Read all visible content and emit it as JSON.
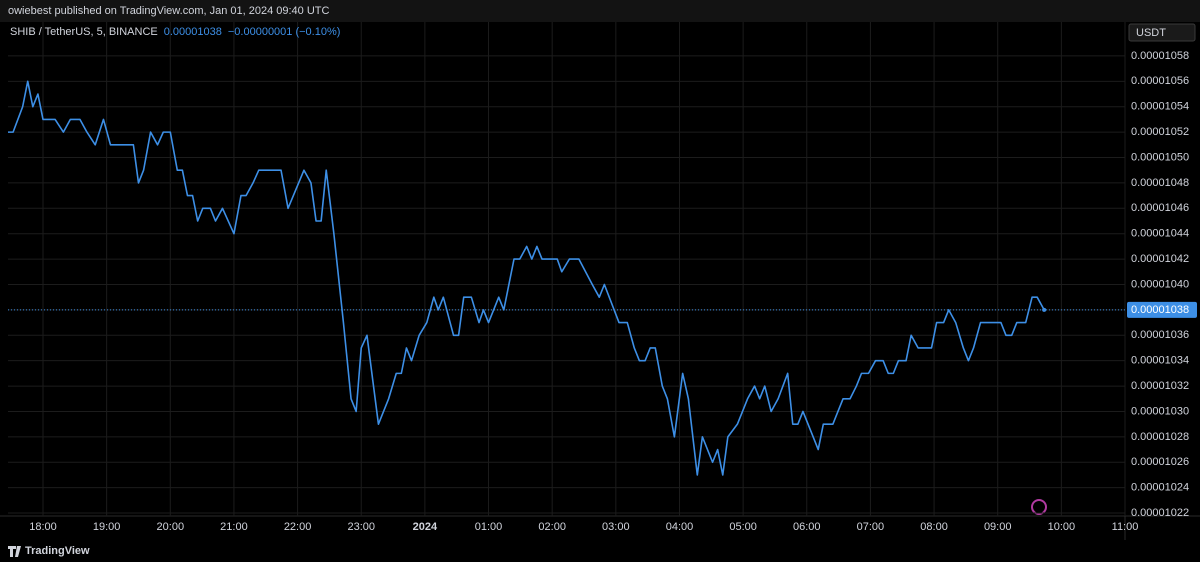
{
  "chart_data": {
    "type": "line",
    "header": "owiebest published on TradingView.com, Jan 01, 2024 09:40 UTC",
    "close_label": "0.00001038",
    "change_label": "−0.00000001 (−0.10%)",
    "currency": "USDT",
    "last_price": {
      "value": 1.038e-05,
      "label": "0.00001038"
    },
    "grid": true,
    "xlim": [
      17.45,
      35.0
    ],
    "xticks": [
      {
        "value": 18,
        "label": "18:00"
      },
      {
        "value": 19,
        "label": "19:00"
      },
      {
        "value": 20,
        "label": "20:00"
      },
      {
        "value": 21,
        "label": "21:00"
      },
      {
        "value": 22,
        "label": "22:00"
      },
      {
        "value": 23,
        "label": "23:00"
      },
      {
        "value": 24,
        "label": "2024"
      },
      {
        "value": 25,
        "label": "01:00"
      },
      {
        "value": 26,
        "label": "02:00"
      },
      {
        "value": 27,
        "label": "03:00"
      },
      {
        "value": 28,
        "label": "04:00"
      },
      {
        "value": 29,
        "label": "05:00"
      },
      {
        "value": 30,
        "label": "06:00"
      },
      {
        "value": 31,
        "label": "07:00"
      },
      {
        "value": 32,
        "label": "08:00"
      },
      {
        "value": 33,
        "label": "09:00"
      },
      {
        "value": 34,
        "label": "10:00"
      },
      {
        "value": 35,
        "label": "11:00"
      }
    ],
    "ylim": [
      1.02161e-05,
      1.06083e-05
    ],
    "yticks": [
      {
        "value": 1.022e-05,
        "label": "0.00001022"
      },
      {
        "value": 1.024e-05,
        "label": "0.00001024"
      },
      {
        "value": 1.026e-05,
        "label": "0.00001026"
      },
      {
        "value": 1.028e-05,
        "label": "0.00001028"
      },
      {
        "value": 1.03e-05,
        "label": "0.00001030"
      },
      {
        "value": 1.032e-05,
        "label": "0.00001032"
      },
      {
        "value": 1.034e-05,
        "label": "0.00001034"
      },
      {
        "value": 1.036e-05,
        "label": "0.00001036"
      },
      {
        "value": 1.038e-05,
        "label": "0.00001038"
      },
      {
        "value": 1.04e-05,
        "label": "0.00001040"
      },
      {
        "value": 1.042e-05,
        "label": "0.00001042"
      },
      {
        "value": 1.044e-05,
        "label": "0.00001044"
      },
      {
        "value": 1.046e-05,
        "label": "0.00001046"
      },
      {
        "value": 1.048e-05,
        "label": "0.00001048"
      },
      {
        "value": 1.05e-05,
        "label": "0.00001050"
      },
      {
        "value": 1.052e-05,
        "label": "0.00001052"
      },
      {
        "value": 1.054e-05,
        "label": "0.00001054"
      },
      {
        "value": 1.056e-05,
        "label": "0.00001056"
      },
      {
        "value": 1.058e-05,
        "label": "0.00001058"
      }
    ],
    "x": [
      17.45,
      17.53,
      17.68,
      17.76,
      17.84,
      17.92,
      18.0,
      18.19,
      18.32,
      18.43,
      18.58,
      18.69,
      18.82,
      18.95,
      19.06,
      19.18,
      19.42,
      19.5,
      19.58,
      19.69,
      19.8,
      19.89,
      20.0,
      20.11,
      20.19,
      20.27,
      20.35,
      20.43,
      20.51,
      20.63,
      20.71,
      20.82,
      21.0,
      21.11,
      21.19,
      21.3,
      21.39,
      21.74,
      21.85,
      22.1,
      22.21,
      22.29,
      22.37,
      22.45,
      22.57,
      22.72,
      22.84,
      22.92,
      23.0,
      23.09,
      23.27,
      23.43,
      23.55,
      23.63,
      23.71,
      23.79,
      23.91,
      24.03,
      24.14,
      24.21,
      24.29,
      24.45,
      24.53,
      24.61,
      24.73,
      24.85,
      24.92,
      25.0,
      25.08,
      25.16,
      25.24,
      25.4,
      25.49,
      25.6,
      25.68,
      25.76,
      25.84,
      26.08,
      26.15,
      26.27,
      26.42,
      26.63,
      26.74,
      26.82,
      27.05,
      27.18,
      27.29,
      27.37,
      27.46,
      27.54,
      27.62,
      27.73,
      27.81,
      27.92,
      28.05,
      28.14,
      28.28,
      28.36,
      28.52,
      28.6,
      28.68,
      28.76,
      28.91,
      29.07,
      29.18,
      29.26,
      29.34,
      29.44,
      29.55,
      29.7,
      29.78,
      29.86,
      29.94,
      30.1,
      30.18,
      30.26,
      30.41,
      30.49,
      30.57,
      30.68,
      30.78,
      30.86,
      30.97,
      31.08,
      31.2,
      31.28,
      31.36,
      31.44,
      31.56,
      31.64,
      31.75,
      31.96,
      32.04,
      32.15,
      32.23,
      32.34,
      32.46,
      32.54,
      32.62,
      32.73,
      32.94,
      33.05,
      33.13,
      33.22,
      33.3,
      33.44,
      33.54,
      33.62,
      33.73
    ],
    "series": [
      {
        "name": "SHIB / TetherUS, 5, BINANCE",
        "color": "#3d8fe6",
        "values": [
          1.052e-05,
          1.052e-05,
          1.054e-05,
          1.056e-05,
          1.054e-05,
          1.055e-05,
          1.053e-05,
          1.053e-05,
          1.052e-05,
          1.053e-05,
          1.053e-05,
          1.052e-05,
          1.051e-05,
          1.053e-05,
          1.051e-05,
          1.051e-05,
          1.051e-05,
          1.048e-05,
          1.049e-05,
          1.052e-05,
          1.051e-05,
          1.052e-05,
          1.052e-05,
          1.049e-05,
          1.049e-05,
          1.047e-05,
          1.047e-05,
          1.045e-05,
          1.046e-05,
          1.046e-05,
          1.045e-05,
          1.046e-05,
          1.044e-05,
          1.047e-05,
          1.047e-05,
          1.048e-05,
          1.049e-05,
          1.049e-05,
          1.046e-05,
          1.049e-05,
          1.048e-05,
          1.045e-05,
          1.045e-05,
          1.049e-05,
          1.044e-05,
          1.037e-05,
          1.031e-05,
          1.03e-05,
          1.035e-05,
          1.036e-05,
          1.029e-05,
          1.031e-05,
          1.033e-05,
          1.033e-05,
          1.035e-05,
          1.034e-05,
          1.036e-05,
          1.037e-05,
          1.039e-05,
          1.038e-05,
          1.039e-05,
          1.036e-05,
          1.036e-05,
          1.039e-05,
          1.039e-05,
          1.037e-05,
          1.038e-05,
          1.037e-05,
          1.038e-05,
          1.039e-05,
          1.038e-05,
          1.042e-05,
          1.042e-05,
          1.043e-05,
          1.042e-05,
          1.043e-05,
          1.042e-05,
          1.042e-05,
          1.041e-05,
          1.042e-05,
          1.042e-05,
          1.04e-05,
          1.039e-05,
          1.04e-05,
          1.037e-05,
          1.037e-05,
          1.035e-05,
          1.034e-05,
          1.034e-05,
          1.035e-05,
          1.035e-05,
          1.032e-05,
          1.031e-05,
          1.028e-05,
          1.033e-05,
          1.031e-05,
          1.025e-05,
          1.028e-05,
          1.026e-05,
          1.027e-05,
          1.025e-05,
          1.028e-05,
          1.029e-05,
          1.031e-05,
          1.032e-05,
          1.031e-05,
          1.032e-05,
          1.03e-05,
          1.031e-05,
          1.033e-05,
          1.029e-05,
          1.029e-05,
          1.03e-05,
          1.028e-05,
          1.027e-05,
          1.029e-05,
          1.029e-05,
          1.03e-05,
          1.031e-05,
          1.031e-05,
          1.032e-05,
          1.033e-05,
          1.033e-05,
          1.034e-05,
          1.034e-05,
          1.033e-05,
          1.033e-05,
          1.034e-05,
          1.034e-05,
          1.036e-05,
          1.035e-05,
          1.035e-05,
          1.037e-05,
          1.037e-05,
          1.038e-05,
          1.037e-05,
          1.035e-05,
          1.034e-05,
          1.035e-05,
          1.037e-05,
          1.037e-05,
          1.037e-05,
          1.036e-05,
          1.036e-05,
          1.037e-05,
          1.037e-05,
          1.039e-05,
          1.039e-05,
          1.038e-05
        ]
      }
    ]
  },
  "footer": {
    "brand": "TradingView"
  }
}
